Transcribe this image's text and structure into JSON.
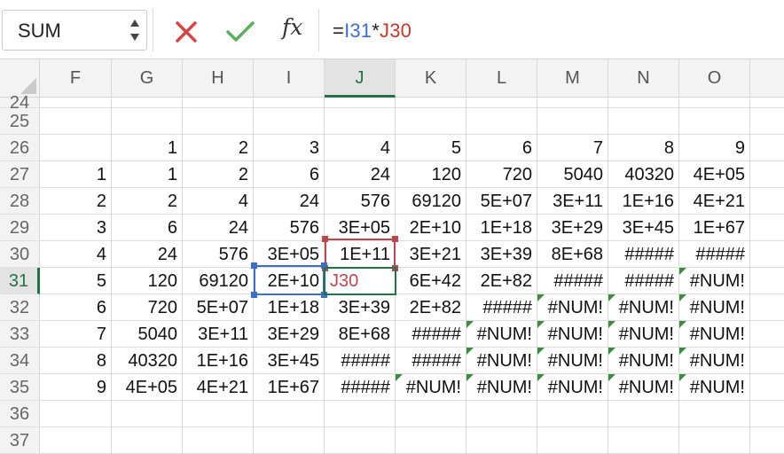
{
  "name_box": {
    "value": "SUM"
  },
  "formula_bar": {
    "fx_label": "fx",
    "formula_parts": [
      {
        "text": "=",
        "color": "dark"
      },
      {
        "text": "I31",
        "color": "blue"
      },
      {
        "text": "*",
        "color": "dark"
      },
      {
        "text": "J30",
        "color": "red"
      }
    ]
  },
  "colors": {
    "accent": "#217346",
    "ref_blue": "#3d6ec9",
    "ref_red": "#b9474d",
    "error_triangle": "#3c8a3c"
  },
  "columns": [
    "F",
    "G",
    "H",
    "I",
    "J",
    "K",
    "L",
    "M",
    "N",
    "O"
  ],
  "active_column": "J",
  "active_row": "31",
  "rows": [
    {
      "num": "24",
      "cells": [
        "",
        "",
        "",
        "",
        "",
        "",
        "",
        "",
        "",
        ""
      ]
    },
    {
      "num": "25",
      "cells": [
        "",
        "",
        "",
        "",
        "",
        "",
        "",
        "",
        "",
        ""
      ]
    },
    {
      "num": "26",
      "cells": [
        "",
        "1",
        "2",
        "3",
        "4",
        "5",
        "6",
        "7",
        "8",
        "9"
      ]
    },
    {
      "num": "27",
      "cells": [
        "1",
        "1",
        "2",
        "6",
        "24",
        "120",
        "720",
        "5040",
        "40320",
        "4E+05"
      ]
    },
    {
      "num": "28",
      "cells": [
        "2",
        "2",
        "4",
        "24",
        "576",
        "69120",
        "5E+07",
        "3E+11",
        "1E+16",
        "4E+21"
      ]
    },
    {
      "num": "29",
      "cells": [
        "3",
        "6",
        "24",
        "576",
        "3E+05",
        "2E+10",
        "1E+18",
        "3E+29",
        "3E+45",
        "1E+67"
      ]
    },
    {
      "num": "30",
      "cells": [
        "4",
        "24",
        "576",
        "3E+05",
        "1E+11",
        "3E+21",
        "3E+39",
        "8E+68",
        "#####",
        "#####"
      ]
    },
    {
      "num": "31",
      "cells": [
        "5",
        "120",
        "69120",
        "2E+10",
        "J30",
        "6E+42",
        "2E+82",
        "#####",
        "#####",
        "#NUM!"
      ]
    },
    {
      "num": "32",
      "cells": [
        "6",
        "720",
        "5E+07",
        "1E+18",
        "3E+39",
        "2E+82",
        "#####",
        "#NUM!",
        "#NUM!",
        "#NUM!"
      ]
    },
    {
      "num": "33",
      "cells": [
        "7",
        "5040",
        "3E+11",
        "3E+29",
        "8E+68",
        "#####",
        "#NUM!",
        "#NUM!",
        "#NUM!",
        "#NUM!"
      ]
    },
    {
      "num": "34",
      "cells": [
        "8",
        "40320",
        "1E+16",
        "3E+45",
        "#####",
        "#####",
        "#NUM!",
        "#NUM!",
        "#NUM!",
        "#NUM!"
      ]
    },
    {
      "num": "35",
      "cells": [
        "9",
        "4E+05",
        "4E+21",
        "1E+67",
        "#####",
        "#NUM!",
        "#NUM!",
        "#NUM!",
        "#NUM!",
        "#NUM!"
      ]
    },
    {
      "num": "36",
      "cells": [
        "",
        "",
        "",
        "",
        "",
        "",
        "",
        "",
        "",
        ""
      ]
    },
    {
      "num": "37",
      "cells": [
        "",
        "",
        "",
        "",
        "",
        "",
        "",
        "",
        "",
        ""
      ]
    }
  ]
}
